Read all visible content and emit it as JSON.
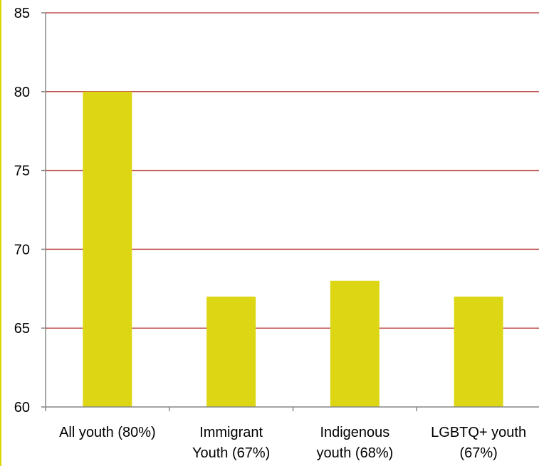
{
  "colors": {
    "bar": "#DCD614",
    "gridline": "#C0504D",
    "axis": "#868686",
    "border": "#D8D800"
  },
  "chart_data": {
    "type": "bar",
    "title": "",
    "xlabel": "",
    "ylabel": "",
    "categories": [
      [
        "All youth (80%)"
      ],
      [
        "Immigrant",
        "Youth (67%)"
      ],
      [
        "Indigenous",
        "youth (68%)"
      ],
      [
        "LGBTQ+ youth",
        "(67%)"
      ]
    ],
    "values": [
      80,
      67,
      68,
      67
    ],
    "ylim": [
      60,
      85
    ],
    "yticks": [
      60,
      65,
      70,
      75,
      80,
      85
    ],
    "grid": true,
    "legend": "none"
  }
}
